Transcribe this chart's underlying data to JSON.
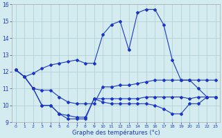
{
  "title": "Graphe des températures (°c)",
  "background_color": "#d4ecf0",
  "line_color": "#1a35cc",
  "grid_color": "#aeccd4",
  "ylim": [
    9,
    16
  ],
  "xlim": [
    0,
    23
  ],
  "yticks": [
    9,
    10,
    11,
    12,
    13,
    14,
    15,
    16
  ],
  "xticks": [
    0,
    1,
    2,
    3,
    4,
    5,
    6,
    7,
    8,
    9,
    10,
    11,
    12,
    13,
    14,
    15,
    16,
    17,
    18,
    19,
    20,
    21,
    22,
    23
  ],
  "y_main": [
    12.1,
    11.7,
    11.9,
    12.2,
    12.4,
    12.5,
    12.6,
    12.7,
    12.5,
    12.5,
    14.2,
    14.8,
    15.0,
    13.3,
    15.5,
    15.7,
    15.7,
    14.8,
    12.7,
    11.5,
    11.5,
    11.0,
    10.5,
    10.5
  ],
  "y_line2": [
    12.1,
    11.7,
    11.0,
    10.9,
    10.9,
    10.5,
    10.2,
    10.1,
    10.1,
    10.1,
    11.1,
    11.1,
    11.2,
    11.2,
    11.3,
    11.4,
    11.5,
    11.5,
    11.5,
    11.5,
    11.5,
    11.5,
    11.5,
    11.5
  ],
  "y_line3": [
    12.1,
    11.7,
    11.0,
    10.0,
    10.0,
    9.5,
    9.4,
    9.3,
    9.3,
    10.4,
    10.4,
    10.4,
    10.4,
    10.4,
    10.4,
    10.5,
    10.5,
    10.5,
    10.5,
    10.5,
    10.4,
    10.5,
    10.5,
    10.5
  ],
  "y_line4": [
    12.1,
    11.7,
    11.0,
    10.0,
    10.0,
    9.5,
    9.2,
    9.2,
    9.2,
    10.4,
    10.2,
    10.1,
    10.1,
    10.1,
    10.1,
    10.1,
    10.0,
    9.8,
    9.5,
    9.5,
    10.1,
    10.1,
    10.5,
    10.5
  ]
}
